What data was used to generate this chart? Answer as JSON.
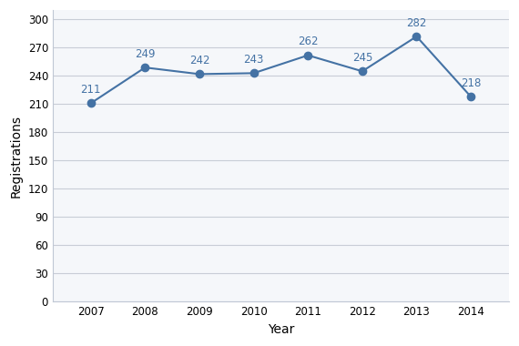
{
  "years": [
    2007,
    2008,
    2009,
    2010,
    2011,
    2012,
    2013,
    2014
  ],
  "values": [
    211,
    249,
    242,
    243,
    262,
    245,
    282,
    218
  ],
  "line_color": "#4472a4",
  "marker_color": "#4472a4",
  "xlabel": "Year",
  "ylabel": "Registrations",
  "ylim": [
    0,
    310
  ],
  "yticks": [
    0,
    30,
    60,
    90,
    120,
    150,
    180,
    210,
    240,
    270,
    300
  ],
  "grid_color": "#c8cdd6",
  "background_color": "#ffffff",
  "plot_bg_color": "#f5f7fa",
  "label_color": "#4472a4",
  "label_fontsize": 8.5,
  "axis_label_fontsize": 10,
  "tick_fontsize": 8.5
}
